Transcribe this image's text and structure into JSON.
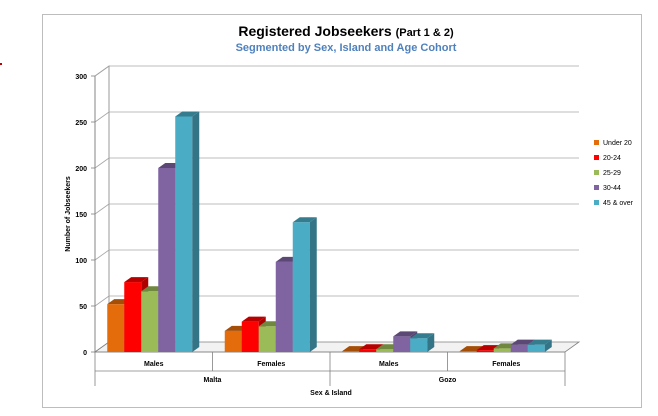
{
  "chart_data": {
    "type": "bar",
    "title": "Registered Jobseekers",
    "title_suffix": "(Part 1 & 2)",
    "subtitle": "Segmented by Sex, Island and Age Cohort",
    "xlabel": "Sex & Island",
    "ylabel": "Number of Jobseekers",
    "ylim": [
      0,
      300
    ],
    "yticks": [
      0,
      50,
      100,
      150,
      200,
      250,
      300
    ],
    "categories": [
      "Males",
      "Females",
      "Males",
      "Females"
    ],
    "category_groups": [
      {
        "label": "Malta",
        "span": [
          0,
          1
        ]
      },
      {
        "label": "Gozo",
        "span": [
          2,
          3
        ]
      }
    ],
    "series": [
      {
        "name": "Under 20",
        "color": "#e46c0a",
        "values": [
          52,
          23,
          1,
          1
        ]
      },
      {
        "name": "20-24",
        "color": "#ff0000",
        "values": [
          76,
          33,
          3,
          2
        ]
      },
      {
        "name": "25-29",
        "color": "#9bbb59",
        "values": [
          66,
          28,
          3,
          4
        ]
      },
      {
        "name": "30-44",
        "color": "#8064a2",
        "values": [
          200,
          98,
          17,
          8
        ]
      },
      {
        "name": "45 & over",
        "color": "#4bacc6",
        "values": [
          256,
          141,
          15,
          8
        ]
      }
    ],
    "grid": true,
    "legend_position": "right",
    "style": "3d-clustered-column"
  },
  "colors": {
    "title": "#000000",
    "subtitle": "#4f81bd",
    "axis": "#808080",
    "grid": "#a6a6a6"
  }
}
